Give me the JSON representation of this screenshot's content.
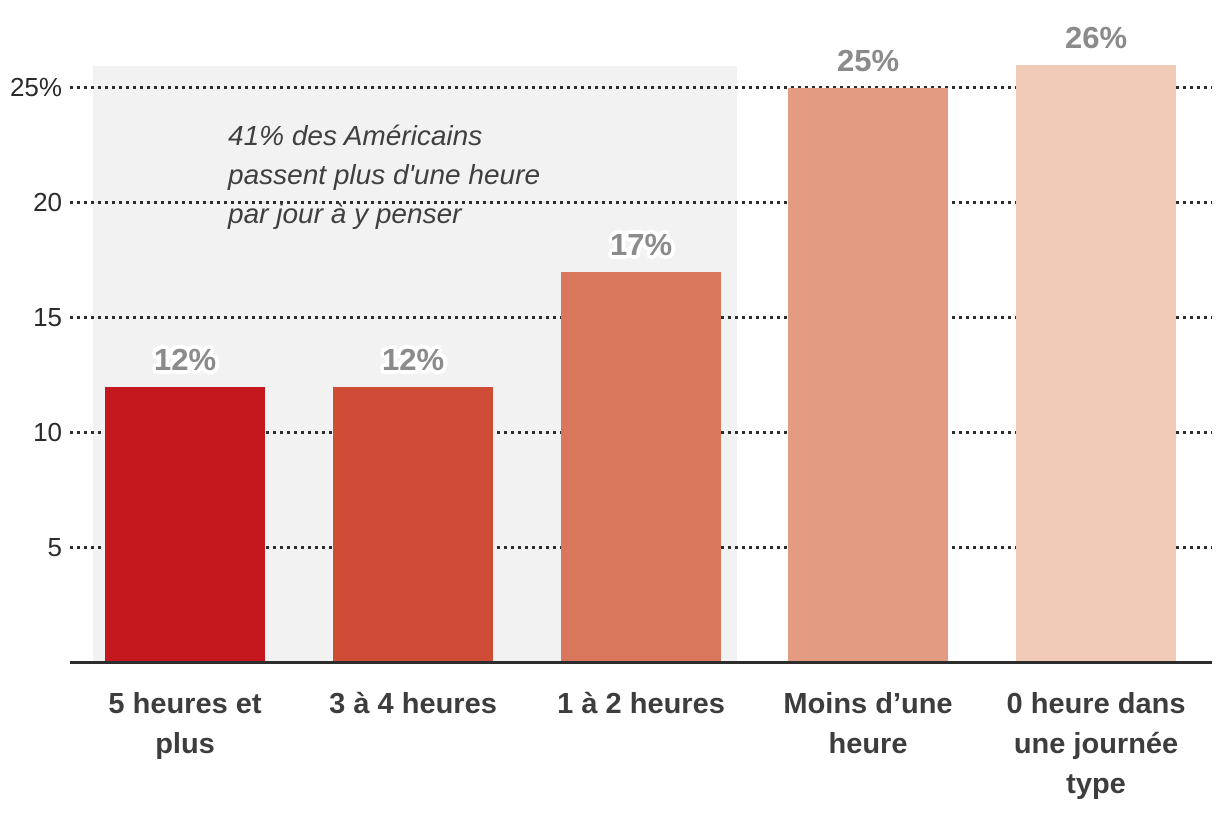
{
  "chart_data": {
    "type": "bar",
    "title": "",
    "xlabel": "",
    "ylabel": "",
    "unit": "%",
    "categories": [
      "5 heures et plus",
      "3 à 4 heures",
      "1 à 2 heures",
      "Moins d’une heure",
      "0 heure dans une journée type"
    ],
    "category_labels_display": [
      "5 heures et\nplus",
      "3 à 4 heures",
      "1 à 2 heures",
      "Moins d’une\nheure",
      "0 heure dans\nune journée\ntype"
    ],
    "values": [
      12,
      12,
      17,
      25,
      26
    ],
    "data_labels": [
      "12%",
      "12%",
      "17%",
      "25%",
      "26%"
    ],
    "bar_colors": [
      "#c5171e",
      "#cf4c37",
      "#d9775c",
      "#e39b81",
      "#f2cbb8"
    ],
    "ylim": [
      0,
      27
    ],
    "yticks": [
      {
        "value": 5,
        "label": "5"
      },
      {
        "value": 10,
        "label": "10"
      },
      {
        "value": 15,
        "label": "15"
      },
      {
        "value": 20,
        "label": "20"
      },
      {
        "value": 25,
        "label": "25%"
      }
    ],
    "grid": "horizontal-dotted",
    "legend": "none",
    "annotation": {
      "text": "41% des Américains\npassent plus d'une heure\npar jour à y penser"
    },
    "highlight_band": {
      "covers_categories": [
        "5 heures et plus",
        "3 à 4 heures",
        "1 à 2 heures"
      ],
      "color": "#f2f2f2"
    }
  },
  "style_colors": {
    "gridline": "#2d2d2d",
    "axis_line": "#2d2d2d",
    "ytick_text": "#2b2b2b",
    "xlabel_text": "#3d3d3d",
    "data_label_text": "#8b8b8b",
    "annotation_text": "#3f3f3f",
    "background": "#ffffff"
  }
}
